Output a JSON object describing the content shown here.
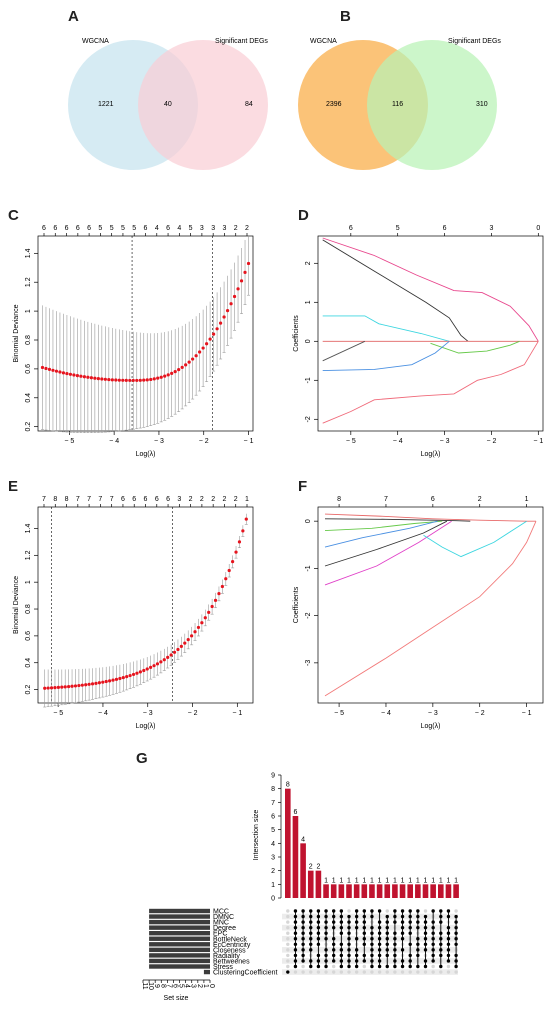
{
  "chart_data": [
    {
      "id": "A",
      "type": "venn",
      "sets": [
        "WGCNA",
        "Significant DEGs"
      ],
      "counts": {
        "only_a": 1221,
        "both": 40,
        "only_b": 84
      },
      "colors": [
        "#cfe8f1",
        "#f9cdd4"
      ]
    },
    {
      "id": "B",
      "type": "venn",
      "sets": [
        "WGCNA",
        "Significant DEGs"
      ],
      "counts": {
        "only_a": 2396,
        "both": 116,
        "only_b": 310
      },
      "colors": [
        "#fbc378",
        "#b9f2b6"
      ]
    },
    {
      "id": "C",
      "type": "line",
      "xlabel": "Log(λ)",
      "ylabel": "Binomial Deviance",
      "xlim": [
        -5.7,
        -0.9
      ],
      "ylim": [
        0.17,
        1.52
      ],
      "xticks": [
        -5,
        -4,
        -3,
        -2,
        -1
      ],
      "yticks": [
        0.2,
        0.4,
        0.6,
        0.8,
        1.0,
        1.2,
        1.4
      ],
      "top_ticks": [
        "6",
        "6",
        "6",
        "6",
        "6",
        "5",
        "5",
        "5",
        "5",
        "6",
        "4",
        "6",
        "4",
        "5",
        "3",
        "3",
        "3",
        "2",
        "2"
      ],
      "vlines": [
        -3.6,
        -1.8
      ],
      "curve": {
        "x_start": -5.6,
        "x_end": -1.0,
        "x_min": -3.6,
        "y_start": 0.61,
        "y_min": 0.52,
        "y_end": 1.33
      },
      "err": {
        "width_start": 0.43,
        "width_end": 0.22
      }
    },
    {
      "id": "D",
      "type": "line",
      "xlabel": "Log(λ)",
      "ylabel": "Coefficients",
      "xlim": [
        -5.7,
        -0.9
      ],
      "ylim": [
        -2.3,
        2.7
      ],
      "xticks": [
        -5,
        -4,
        -3,
        -2,
        -1
      ],
      "yticks": [
        -2,
        -1,
        0,
        1,
        2
      ],
      "top_ticks": [
        "6",
        "5",
        "6",
        "3",
        "0"
      ],
      "top_tick_x": [
        -5.0,
        -4.0,
        -3.0,
        -2.0,
        -1.0
      ],
      "series": [
        {
          "color": "#e8478d",
          "x": [
            -5.6,
            -4.5,
            -3.6,
            -2.8,
            -2.2,
            -1.6,
            -1.2,
            -1.0
          ],
          "y": [
            2.65,
            2.2,
            1.7,
            1.3,
            1.25,
            0.9,
            0.4,
            0.0
          ]
        },
        {
          "color": "#333333",
          "x": [
            -5.6,
            -4.5,
            -3.4,
            -2.9,
            -2.65,
            -2.5
          ],
          "y": [
            2.6,
            1.8,
            1.0,
            0.6,
            0.15,
            0.0
          ]
        },
        {
          "color": "#3dd6e0",
          "x": [
            -5.6,
            -4.7,
            -4.4,
            -3.5,
            -2.9
          ],
          "y": [
            0.65,
            0.65,
            0.45,
            0.2,
            0.0
          ]
        },
        {
          "color": "#e06262",
          "x": [
            -5.6,
            -1.0
          ],
          "y": [
            0.0,
            0.0
          ]
        },
        {
          "color": "#555555",
          "x": [
            -5.6,
            -4.7
          ],
          "y": [
            -0.5,
            0.0
          ]
        },
        {
          "color": "#67c94a",
          "x": [
            -3.3,
            -2.7,
            -2.1,
            -1.6,
            -1.4
          ],
          "y": [
            -0.05,
            -0.3,
            -0.25,
            -0.1,
            0.0
          ]
        },
        {
          "color": "#4a90e2",
          "x": [
            -5.6,
            -4.5,
            -3.7,
            -3.2,
            -2.9
          ],
          "y": [
            -0.75,
            -0.72,
            -0.6,
            -0.3,
            0.0
          ]
        },
        {
          "color": "#f06a7a",
          "x": [
            -5.6,
            -5.0,
            -4.5,
            -3.5,
            -2.8,
            -2.3,
            -1.8,
            -1.3,
            -1.0
          ],
          "y": [
            -2.1,
            -1.8,
            -1.5,
            -1.4,
            -1.35,
            -1.0,
            -0.85,
            -0.6,
            0.0
          ]
        }
      ]
    },
    {
      "id": "E",
      "type": "line",
      "xlabel": "Log(λ)",
      "ylabel": "Binomial Deviance",
      "xlim": [
        -5.45,
        -0.65
      ],
      "ylim": [
        0.1,
        1.56
      ],
      "xticks": [
        -5,
        -4,
        -3,
        -2,
        -1
      ],
      "yticks": [
        0.2,
        0.4,
        0.6,
        0.8,
        1.0,
        1.2,
        1.4
      ],
      "top_ticks": [
        "7",
        "8",
        "8",
        "7",
        "7",
        "7",
        "7",
        "6",
        "6",
        "6",
        "6",
        "6",
        "3",
        "2",
        "2",
        "2",
        "2",
        "2",
        "1"
      ],
      "vlines": [
        -5.15,
        -2.45
      ],
      "curve": {
        "x_start": -5.3,
        "x_end": -0.8,
        "y_start": 0.21,
        "y_end": 1.47
      },
      "err": {
        "width_start": 0.14,
        "width_end": 0.04
      }
    },
    {
      "id": "F",
      "type": "line",
      "xlabel": "Log(λ)",
      "ylabel": "Coefficients",
      "xlim": [
        -5.45,
        -0.65
      ],
      "ylim": [
        -3.85,
        0.3
      ],
      "xticks": [
        -5,
        -4,
        -3,
        -2,
        -1
      ],
      "yticks": [
        -3,
        -2,
        -1,
        0
      ],
      "top_ticks": [
        "8",
        "7",
        "6",
        "2",
        "1"
      ],
      "top_tick_x": [
        -5.0,
        -4.0,
        -3.0,
        -2.0,
        -1.0
      ],
      "series": [
        {
          "color": "#e86a6a",
          "x": [
            -5.3,
            -4.0,
            -3.0,
            -2.0,
            -1.0,
            -0.8
          ],
          "y": [
            0.15,
            0.1,
            0.05,
            0.02,
            0.0,
            0.0
          ]
        },
        {
          "color": "#333333",
          "x": [
            -5.3,
            -4.0,
            -3.0,
            -2.5,
            -2.2
          ],
          "y": [
            0.05,
            0.04,
            0.02,
            0.01,
            0.0
          ]
        },
        {
          "color": "#67c94a",
          "x": [
            -5.3,
            -4.3,
            -3.4,
            -2.8
          ],
          "y": [
            -0.2,
            -0.15,
            -0.05,
            0.0
          ]
        },
        {
          "color": "#4a90e2",
          "x": [
            -5.3,
            -4.5,
            -3.5,
            -2.9
          ],
          "y": [
            -0.55,
            -0.35,
            -0.15,
            0.0
          ]
        },
        {
          "color": "#333333",
          "x": [
            -5.3,
            -4.2,
            -3.2,
            -2.7
          ],
          "y": [
            -0.95,
            -0.6,
            -0.25,
            0.0
          ]
        },
        {
          "color": "#e040c8",
          "x": [
            -5.3,
            -4.2,
            -3.3,
            -2.6
          ],
          "y": [
            -1.35,
            -0.95,
            -0.45,
            0.0
          ]
        },
        {
          "color": "#3dd6e0",
          "x": [
            -3.2,
            -2.8,
            -2.4,
            -1.7,
            -1.0
          ],
          "y": [
            -0.3,
            -0.55,
            -0.75,
            -0.45,
            0.0
          ]
        },
        {
          "color": "#f27a7a",
          "x": [
            -5.3,
            -4.0,
            -3.0,
            -2.0,
            -1.3,
            -1.0,
            -0.8
          ],
          "y": [
            -3.7,
            -2.9,
            -2.25,
            -1.6,
            -0.9,
            -0.45,
            0.0
          ]
        }
      ]
    },
    {
      "id": "G",
      "type": "upset",
      "sets": [
        "MCC",
        "DMNC",
        "MNC",
        "Degree",
        "EPC",
        "BottleNeck",
        "EcCentricity",
        "Closeness",
        "Radiality",
        "Bettweenes",
        "Stress",
        "ClusteringCoefficient"
      ],
      "set_sizes": [
        10,
        10,
        10,
        10,
        10,
        10,
        10,
        10,
        10,
        10,
        10,
        1
      ],
      "set_size_ticks": [
        "11",
        "10",
        "9",
        "8",
        "7",
        "6",
        "5",
        "4",
        "3",
        "2",
        "1",
        "0"
      ],
      "intersection_sizes": [
        8,
        6,
        4,
        2,
        2,
        1,
        1,
        1,
        1,
        1,
        1,
        1,
        1,
        1,
        1,
        1,
        1,
        1,
        1,
        1,
        1,
        1,
        1
      ],
      "intersection_label_y": "Intersection size",
      "set_size_label": "Set size",
      "yticks": [
        0,
        1,
        2,
        3,
        4,
        5,
        6,
        7,
        8,
        9
      ],
      "bar_color": "#c0132f",
      "matrix": [
        [
          12
        ],
        [
          1,
          2,
          3,
          4,
          5,
          6,
          7,
          8,
          9,
          10,
          11
        ],
        [
          1,
          2,
          3,
          4,
          5,
          6,
          7,
          8,
          9,
          10
        ],
        [
          1,
          2,
          3,
          4,
          5,
          6,
          7,
          8,
          10,
          11
        ],
        [
          1,
          2,
          3,
          4,
          5,
          6,
          7,
          9,
          10,
          11
        ],
        [
          1,
          2,
          3,
          4,
          5,
          6,
          8,
          9,
          10,
          11
        ],
        [
          1,
          2,
          3,
          4,
          6,
          7,
          8,
          9,
          10
        ],
        [
          1,
          2,
          3,
          4,
          5,
          7,
          8,
          9,
          10,
          11
        ],
        [
          2,
          3,
          4,
          5,
          6,
          7,
          8,
          9,
          10,
          11
        ],
        [
          1,
          2,
          3,
          4,
          6,
          8,
          9,
          10,
          11
        ],
        [
          1,
          2,
          3,
          4,
          5,
          6,
          7,
          9,
          10
        ],
        [
          1,
          2,
          4,
          5,
          6,
          7,
          8,
          9,
          10,
          11
        ],
        [
          1,
          3,
          4,
          5,
          6,
          7,
          8,
          9,
          10,
          11
        ],
        [
          2,
          3,
          4,
          5,
          6,
          7,
          8,
          9,
          11
        ],
        [
          1,
          2,
          3,
          5,
          6,
          7,
          8,
          9,
          10,
          11
        ],
        [
          1,
          2,
          3,
          4,
          5,
          6,
          8,
          10,
          11
        ],
        [
          1,
          2,
          3,
          4,
          5,
          7,
          9,
          10,
          11
        ],
        [
          1,
          2,
          3,
          4,
          6,
          7,
          8,
          9,
          11
        ],
        [
          2,
          3,
          4,
          5,
          6,
          7,
          8,
          10,
          11
        ],
        [
          1,
          3,
          4,
          5,
          6,
          7,
          8,
          9,
          10
        ],
        [
          1,
          2,
          3,
          5,
          6,
          7,
          8,
          9,
          11
        ],
        [
          1,
          2,
          4,
          5,
          6,
          7,
          8,
          9,
          10
        ],
        [
          2,
          3,
          4,
          5,
          6,
          7,
          9,
          10,
          11
        ]
      ]
    }
  ],
  "panels": {
    "a": "A",
    "b": "B",
    "c": "C",
    "d": "D",
    "e": "E",
    "f": "F",
    "g": "G"
  }
}
